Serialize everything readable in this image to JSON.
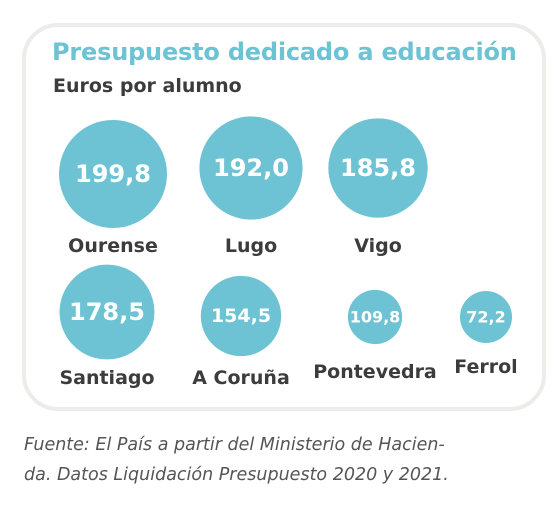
{
  "title": "Presupuesto dedicado a educación",
  "subtitle": "Euros por alumno",
  "caption_line1": "Fuente: El País a partir del Ministerio de Hacien-",
  "caption_line2": "da. Datos Liquidación Presupuesto 2020 y 2021.",
  "colors": {
    "bubble": "#6dc3d4",
    "title": "#6cc3d3",
    "card_border": "#ecece9"
  },
  "chart_data": {
    "type": "bubble",
    "title": "Presupuesto dedicado a educación",
    "subtitle": "Euros por alumno",
    "categories": [
      "Ourense",
      "Lugo",
      "Vigo",
      "Santiago",
      "A Coruña",
      "Pontevedra",
      "Ferrol"
    ],
    "values": [
      199.8,
      192.0,
      185.8,
      178.5,
      154.5,
      109.8,
      72.2
    ],
    "value_labels": [
      "199,8",
      "192,0",
      "185,8",
      "178,5",
      "154,5",
      "109,8",
      "72,2"
    ]
  }
}
